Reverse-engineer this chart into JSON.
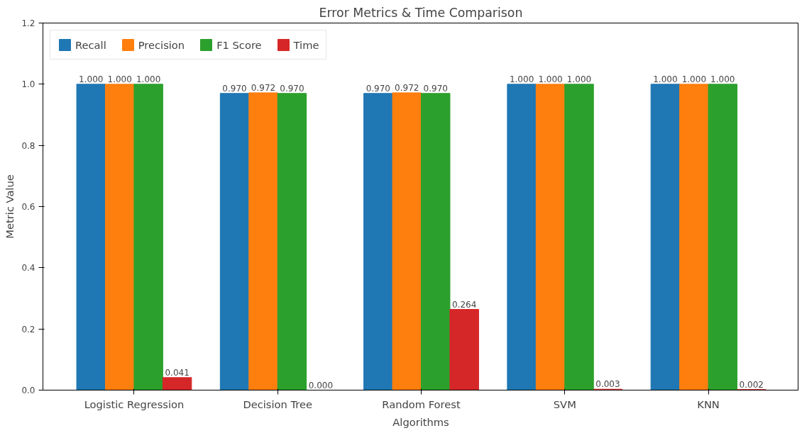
{
  "chart_data": {
    "type": "bar",
    "title": "Error Metrics & Time Comparison",
    "xlabel": "Algorithms",
    "ylabel": "Metric Value",
    "categories": [
      "Logistic Regression",
      "Decision Tree",
      "Random Forest",
      "SVM",
      "KNN"
    ],
    "series": [
      {
        "name": "Recall",
        "color": "#1f77b4",
        "values": [
          1.0,
          0.97,
          0.97,
          1.0,
          1.0
        ],
        "value_labels": [
          "1.000",
          "0.970",
          "0.970",
          "1.000",
          "1.000"
        ]
      },
      {
        "name": "Precision",
        "color": "#ff7f0e",
        "values": [
          1.0,
          0.972,
          0.972,
          1.0,
          1.0
        ],
        "value_labels": [
          "1.000",
          "0.972",
          "0.972",
          "1.000",
          "1.000"
        ]
      },
      {
        "name": "F1 Score",
        "color": "#2ca02c",
        "values": [
          1.0,
          0.97,
          0.97,
          1.0,
          1.0
        ],
        "value_labels": [
          "1.000",
          "0.970",
          "0.970",
          "1.000",
          "1.000"
        ]
      },
      {
        "name": "Time",
        "color": "#d62728",
        "values": [
          0.041,
          0.0,
          0.264,
          0.003,
          0.002
        ],
        "value_labels": [
          "0.041",
          "0.000",
          "0.264",
          "0.003",
          "0.002"
        ]
      }
    ],
    "ylim": [
      0,
      1.2
    ],
    "yticks": [
      {
        "value": 0,
        "label": "0.0"
      },
      {
        "value": 0.2,
        "label": "0.2"
      },
      {
        "value": 0.4,
        "label": "0.4"
      },
      {
        "value": 0.6,
        "label": "0.6"
      },
      {
        "value": 0.8,
        "label": "0.8"
      },
      {
        "value": 1.0,
        "label": "1.0"
      },
      {
        "value": 1.2,
        "label": "1.2"
      }
    ],
    "legend": "top left",
    "grid": false
  }
}
